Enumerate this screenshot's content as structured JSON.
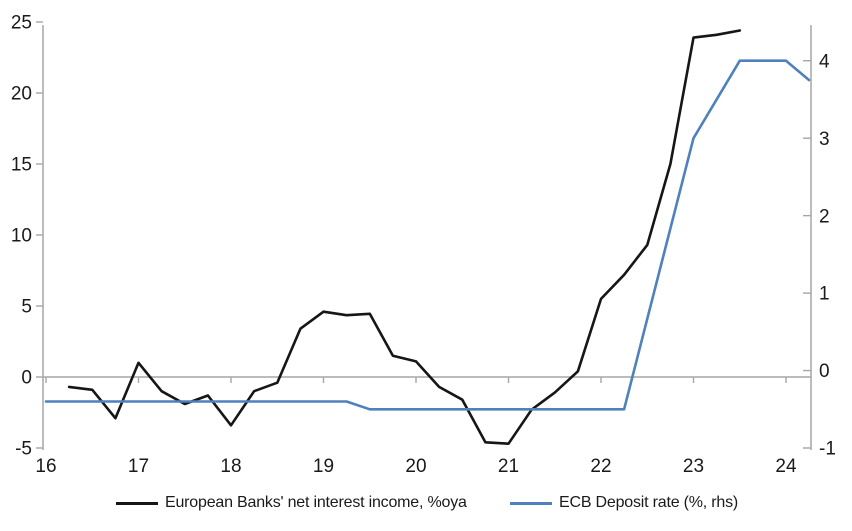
{
  "chart_data": {
    "type": "line",
    "title": "",
    "x_axis": {
      "tick_values": [
        16,
        17,
        18,
        19,
        20,
        21,
        22,
        23,
        24
      ],
      "tick_labels": [
        "16",
        "17",
        "18",
        "19",
        "20",
        "21",
        "22",
        "23",
        "24"
      ],
      "min": 16,
      "max": 24.33
    },
    "left_axis": {
      "min": -5,
      "max": 25,
      "ticks": [
        25,
        20,
        15,
        10,
        5,
        0,
        -5
      ],
      "tick_labels": [
        "25",
        "20",
        "15",
        "10",
        "5",
        "0",
        "-5"
      ]
    },
    "right_axis": {
      "min": -1,
      "max": 4.5,
      "ticks": [
        4,
        3,
        2,
        1,
        0,
        -1
      ],
      "tick_labels": [
        "4",
        "3",
        "2",
        "1",
        "0",
        "-1"
      ]
    },
    "gridlines": {
      "zero_line_only": true
    },
    "legend_position": "bottom",
    "series": [
      {
        "name": "European Banks' net interest income, %oya",
        "axis": "left",
        "color": "#161616",
        "points": [
          [
            16.25,
            -0.7
          ],
          [
            16.5,
            -0.9
          ],
          [
            16.75,
            -2.9
          ],
          [
            17.0,
            1.0
          ],
          [
            17.25,
            -1.0
          ],
          [
            17.5,
            -1.9
          ],
          [
            17.75,
            -1.3
          ],
          [
            18.0,
            -3.4
          ],
          [
            18.25,
            -1.0
          ],
          [
            18.5,
            -0.4
          ],
          [
            18.75,
            3.4
          ],
          [
            19.0,
            4.6
          ],
          [
            19.25,
            4.35
          ],
          [
            19.5,
            4.45
          ],
          [
            19.75,
            1.5
          ],
          [
            20.0,
            1.1
          ],
          [
            20.25,
            -0.7
          ],
          [
            20.5,
            -1.6
          ],
          [
            20.75,
            -4.6
          ],
          [
            21.0,
            -4.7
          ],
          [
            21.25,
            -2.3
          ],
          [
            21.5,
            -1.1
          ],
          [
            21.75,
            0.4
          ],
          [
            22.0,
            5.5
          ],
          [
            22.25,
            7.2
          ],
          [
            22.5,
            9.3
          ],
          [
            22.75,
            15.0
          ],
          [
            23.0,
            23.9
          ],
          [
            23.25,
            24.1
          ],
          [
            23.5,
            24.4
          ]
        ]
      },
      {
        "name": "ECB Deposit rate (%, rhs)",
        "axis": "right",
        "color": "#4e81bd",
        "points": [
          [
            16.0,
            -0.4
          ],
          [
            19.25,
            -0.4
          ],
          [
            19.5,
            -0.5
          ],
          [
            22.25,
            -0.5
          ],
          [
            23.0,
            3.0
          ],
          [
            23.5,
            4.0
          ],
          [
            24.0,
            4.0
          ],
          [
            24.25,
            3.75
          ]
        ]
      }
    ]
  },
  "colors": {
    "axis": "#a6a6a6",
    "tick_text": "#1a1a1a",
    "background": "#ffffff",
    "series_black": "#161616",
    "series_blue": "#4e81bd"
  }
}
